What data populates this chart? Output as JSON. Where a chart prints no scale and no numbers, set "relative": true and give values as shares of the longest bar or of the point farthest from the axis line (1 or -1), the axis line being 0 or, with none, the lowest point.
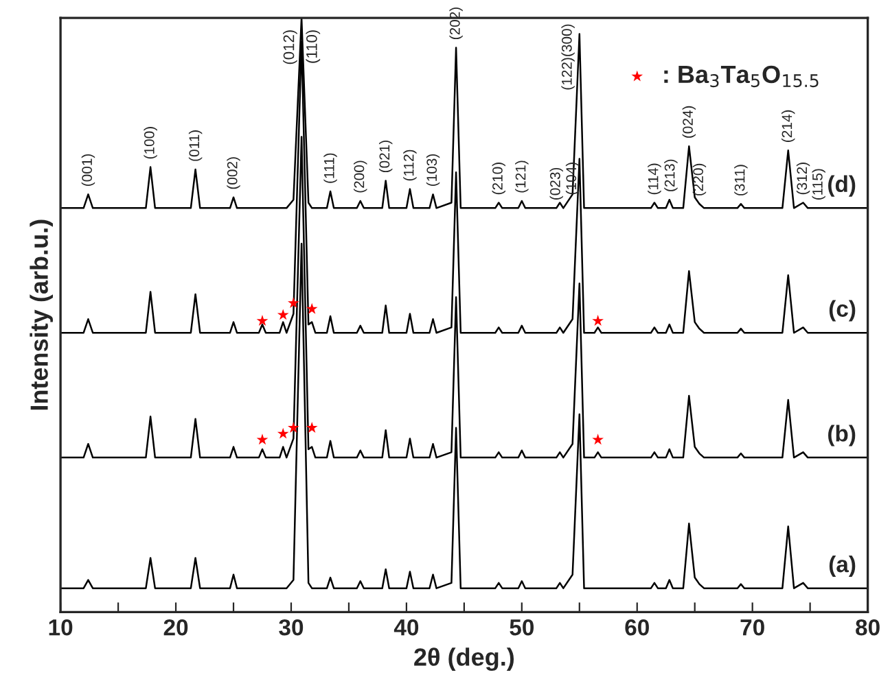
{
  "chart_data": {
    "type": "line",
    "relative": true,
    "xlabel": "2θ (deg.)",
    "ylabel": "Intensity (arb.u.)",
    "xlim": [
      10,
      80
    ],
    "xticks": [
      10,
      {
        "value": 15,
        "label": null
      },
      20,
      {
        "value": 25,
        "label": null
      },
      30,
      {
        "value": 35,
        "label": null
      },
      40,
      {
        "value": 45,
        "label": null
      },
      50,
      {
        "value": 55,
        "label": null
      },
      60,
      {
        "value": 65,
        "label": null
      },
      70,
      {
        "value": 75,
        "label": null
      },
      80
    ],
    "tick_labels": "x",
    "grid": false,
    "legend": "top right",
    "x": [
      10,
      12.0,
      12.4,
      12.8,
      17.4,
      17.8,
      18.2,
      21.3,
      21.7,
      22.1,
      24.7,
      25.0,
      25.3,
      27.2,
      27.5,
      27.8,
      29.0,
      29.3,
      29.6,
      30.2,
      30.9,
      31.5,
      31.8,
      32.1,
      33.1,
      33.4,
      33.7,
      35.7,
      36.0,
      36.3,
      37.9,
      38.2,
      38.5,
      40.0,
      40.3,
      40.6,
      42.0,
      42.3,
      42.6,
      43.9,
      44.3,
      44.7,
      47.7,
      48.0,
      48.3,
      49.7,
      50.0,
      50.3,
      53.0,
      53.3,
      53.6,
      54.4,
      55.0,
      55.4,
      56.3,
      56.6,
      56.9,
      61.2,
      61.5,
      61.8,
      62.5,
      62.8,
      63.1,
      64.0,
      64.5,
      65.0,
      65.4,
      65.8,
      68.7,
      69.0,
      69.3,
      72.6,
      73.1,
      73.6,
      74.4,
      74.8,
      80
    ],
    "series": [
      {
        "name": "(a)",
        "color": "#000000",
        "values": [
          0.04,
          0.04,
          0.054,
          0.04,
          0.04,
          0.091,
          0.04,
          0.04,
          0.091,
          0.04,
          0.04,
          0.063,
          0.04,
          0.04,
          0.04,
          0.04,
          0.04,
          0.04,
          0.04,
          0.054,
          0.62,
          0.049,
          0.04,
          0.04,
          0.04,
          0.058,
          0.04,
          0.04,
          0.052,
          0.04,
          0.04,
          0.072,
          0.04,
          0.04,
          0.068,
          0.04,
          0.04,
          0.063,
          0.04,
          0.049,
          0.31,
          0.04,
          0.04,
          0.049,
          0.04,
          0.04,
          0.052,
          0.04,
          0.04,
          0.049,
          0.04,
          0.063,
          0.333,
          0.04,
          0.04,
          0.04,
          0.04,
          0.04,
          0.049,
          0.04,
          0.04,
          0.054,
          0.04,
          0.04,
          0.149,
          0.058,
          0.047,
          0.04,
          0.04,
          0.047,
          0.04,
          0.04,
          0.144,
          0.04,
          0.049,
          0.04,
          0.04
        ]
      },
      {
        "name": "(b)",
        "color": "#000000",
        "values": [
          0.26,
          0.26,
          0.283,
          0.26,
          0.26,
          0.329,
          0.26,
          0.26,
          0.325,
          0.26,
          0.26,
          0.278,
          0.26,
          0.26,
          0.274,
          0.26,
          0.26,
          0.278,
          0.26,
          0.292,
          0.8,
          0.274,
          0.278,
          0.26,
          0.26,
          0.288,
          0.26,
          0.26,
          0.272,
          0.26,
          0.26,
          0.306,
          0.26,
          0.26,
          0.292,
          0.26,
          0.26,
          0.283,
          0.26,
          0.269,
          0.53,
          0.26,
          0.26,
          0.269,
          0.26,
          0.26,
          0.272,
          0.26,
          0.26,
          0.269,
          0.26,
          0.283,
          0.553,
          0.26,
          0.26,
          0.269,
          0.26,
          0.26,
          0.269,
          0.26,
          0.26,
          0.274,
          0.26,
          0.26,
          0.364,
          0.278,
          0.267,
          0.26,
          0.26,
          0.267,
          0.26,
          0.26,
          0.357,
          0.26,
          0.269,
          0.26,
          0.26
        ]
      },
      {
        "name": "(c)",
        "color": "#000000",
        "values": [
          0.47,
          0.47,
          0.493,
          0.47,
          0.47,
          0.539,
          0.47,
          0.47,
          0.535,
          0.47,
          0.47,
          0.488,
          0.47,
          0.47,
          0.484,
          0.47,
          0.47,
          0.488,
          0.47,
          0.502,
          0.96,
          0.484,
          0.488,
          0.47,
          0.47,
          0.498,
          0.47,
          0.47,
          0.482,
          0.47,
          0.47,
          0.516,
          0.47,
          0.47,
          0.502,
          0.47,
          0.47,
          0.493,
          0.47,
          0.479,
          0.74,
          0.47,
          0.47,
          0.479,
          0.47,
          0.47,
          0.482,
          0.47,
          0.47,
          0.479,
          0.47,
          0.493,
          0.763,
          0.47,
          0.47,
          0.479,
          0.47,
          0.47,
          0.479,
          0.47,
          0.47,
          0.484,
          0.47,
          0.47,
          0.574,
          0.488,
          0.477,
          0.47,
          0.47,
          0.477,
          0.47,
          0.47,
          0.567,
          0.47,
          0.479,
          0.47,
          0.47
        ]
      },
      {
        "name": "(d)",
        "color": "#000000",
        "values": [
          0.68,
          0.68,
          0.703,
          0.68,
          0.68,
          0.749,
          0.68,
          0.68,
          0.745,
          0.68,
          0.68,
          0.698,
          0.68,
          0.68,
          0.68,
          0.68,
          0.68,
          0.68,
          0.68,
          0.694,
          1.0,
          0.689,
          0.68,
          0.68,
          0.68,
          0.708,
          0.68,
          0.68,
          0.692,
          0.68,
          0.68,
          0.726,
          0.68,
          0.68,
          0.712,
          0.68,
          0.68,
          0.703,
          0.68,
          0.689,
          0.95,
          0.68,
          0.68,
          0.689,
          0.68,
          0.68,
          0.692,
          0.68,
          0.68,
          0.689,
          0.68,
          0.703,
          0.973,
          0.68,
          0.68,
          0.68,
          0.68,
          0.68,
          0.689,
          0.68,
          0.68,
          0.694,
          0.68,
          0.68,
          0.784,
          0.698,
          0.687,
          0.68,
          0.68,
          0.687,
          0.68,
          0.68,
          0.777,
          0.68,
          0.689,
          0.68,
          0.68
        ]
      },
      {
        "name": ": Ba$_{3}$Ta$_{5}$O$_{15.5}$",
        "type": "scatter",
        "marker": "star",
        "color": "#ff0000",
        "x": [
          27.5,
          29.3,
          30.2,
          31.8,
          56.6,
          27.5,
          29.3,
          30.2,
          31.8,
          56.6
        ],
        "values": [
          0.29,
          0.3,
          0.31,
          0.31,
          0.29,
          0.49,
          0.5,
          0.52,
          0.51,
          0.49
        ]
      }
    ],
    "annotations": [
      {
        "text": "(001)",
        "x": 12.4,
        "y": 0.703
      },
      {
        "text": "(100)",
        "x": 17.8,
        "y": 0.749
      },
      {
        "text": "(011)",
        "x": 21.7,
        "y": 0.745
      },
      {
        "text": "(002)",
        "x": 25.0,
        "y": 0.698
      },
      "(012)",
      "(110)",
      {
        "text": "(111)",
        "x": 33.4,
        "y": 0.708
      },
      {
        "text": "(200)",
        "x": 36.0,
        "y": 0.692
      },
      {
        "text": "(021)",
        "x": 38.2,
        "y": 0.726
      },
      {
        "text": "(112)",
        "x": 40.3,
        "y": 0.712
      },
      {
        "text": "(103)",
        "x": 42.3,
        "y": 0.703
      },
      {
        "text": "(202)",
        "x": 44.3,
        "y": 0.95
      },
      {
        "text": "(210)",
        "x": 48.0,
        "y": 0.689
      },
      {
        "text": "(121)",
        "x": 50.0,
        "y": 0.692
      },
      {
        "text": "(023)",
        "x": 53.0,
        "y": 0.68
      },
      {
        "text": "(104)",
        "x": 53.9,
        "y": 0.689
      },
      {
        "text": "(122)(300)",
        "x": 55.0,
        "y": 0.973
      },
      {
        "text": "(114)",
        "x": 61.5,
        "y": 0.689
      },
      {
        "text": "(213)",
        "x": 62.8,
        "y": 0.694
      },
      {
        "text": "(024)",
        "x": 64.5,
        "y": 0.784
      },
      {
        "text": "(220)",
        "x": 65.4,
        "y": 0.687
      },
      {
        "text": "(311)",
        "x": 69.0,
        "y": 0.687
      },
      {
        "text": "(214)",
        "x": 73.1,
        "y": 0.777
      },
      {
        "text": "(312)",
        "x": 74.4,
        "y": 0.689
      },
      {
        "text": "(115)",
        "x": 74.8,
        "y": 0.68
      }
    ]
  }
}
